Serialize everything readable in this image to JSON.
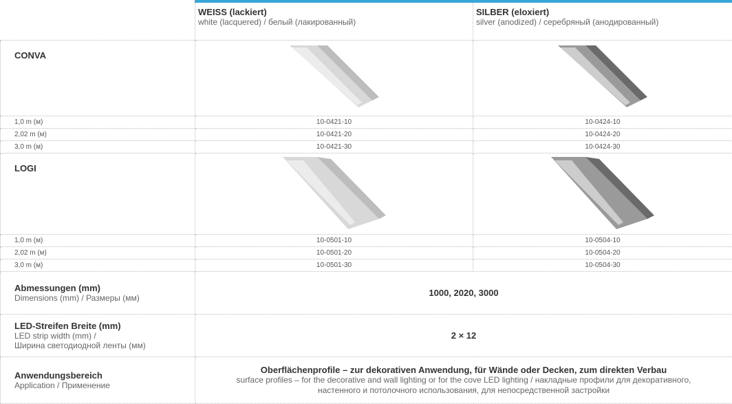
{
  "header": {
    "columns": [
      {
        "title": "WEISS (lackiert)",
        "subtitle": "white (lacquered) / белый (лакированный)"
      },
      {
        "title": "SILBER (eloxiert)",
        "subtitle": "silver (anodized) / серебряный (анодированный)"
      }
    ]
  },
  "products": [
    {
      "name": "CONVA",
      "rows": [
        {
          "length": "1,0 m (м)",
          "codes": [
            "10-0421-10",
            "10-0424-10"
          ]
        },
        {
          "length": "2,02 m (м)",
          "codes": [
            "10-0421-20",
            "10-0424-20"
          ]
        },
        {
          "length": "3,0 m (м)",
          "codes": [
            "10-0421-30",
            "10-0424-30"
          ]
        }
      ]
    },
    {
      "name": "LOGI",
      "rows": [
        {
          "length": "1,0 m (м)",
          "codes": [
            "10-0501-10",
            "10-0504-10"
          ]
        },
        {
          "length": "2,02 m (м)",
          "codes": [
            "10-0501-20",
            "10-0504-20"
          ]
        },
        {
          "length": "3,0 m (м)",
          "codes": [
            "10-0501-30",
            "10-0504-30"
          ]
        }
      ]
    }
  ],
  "specs": [
    {
      "label": "Abmessungen (mm)",
      "sublabel": [
        "Dimensions (mm) / Размеры (мм)"
      ],
      "value": "1000, 2020, 3000"
    },
    {
      "label": "LED-Streifen Breite (mm)",
      "sublabel": [
        "LED strip width (mm) /",
        "Ширина светодиодной ленты (мм)"
      ],
      "value": "2 × 12"
    },
    {
      "label": "Anwendungsbereich",
      "sublabel": [
        "Application / Применение"
      ],
      "value": "Oberflächenprofile – zur dekorativen Anwendung, für Wände oder Decken, zum direkten Verbau",
      "value_sub": "surface profiles – for the decorative and wall lighting or for the cove LED lighting / накладные профили для декоративного, настенного и потолочного использования, для непосредственной застройки"
    }
  ]
}
